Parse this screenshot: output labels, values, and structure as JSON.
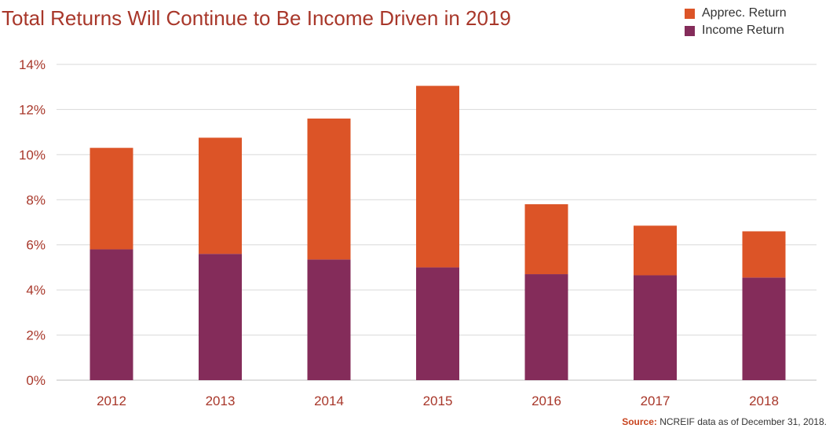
{
  "chart_data": {
    "type": "bar",
    "stacked": true,
    "title": "Total Returns Will Continue to Be Income Driven in 2019",
    "categories": [
      "2012",
      "2013",
      "2014",
      "2015",
      "2016",
      "2017",
      "2018"
    ],
    "series": [
      {
        "name": "Income Return",
        "color": "#842c5a",
        "values": [
          5.8,
          5.6,
          5.35,
          5.0,
          4.7,
          4.65,
          4.55
        ]
      },
      {
        "name": "Apprec. Return",
        "color": "#dc5427",
        "values": [
          4.5,
          5.15,
          6.25,
          8.05,
          3.1,
          2.2,
          2.05
        ]
      }
    ],
    "ylim": [
      0,
      14
    ],
    "yticks": [
      0,
      2,
      4,
      6,
      8,
      10,
      12,
      14
    ],
    "ytick_labels": [
      "0%",
      "2%",
      "4%",
      "6%",
      "8%",
      "10%",
      "12%",
      "14%"
    ],
    "grid": true,
    "legend": {
      "position": "top-right",
      "entries": [
        {
          "label": "Apprec. Return",
          "color": "#dc5427"
        },
        {
          "label": "Income Return",
          "color": "#842c5a"
        }
      ]
    },
    "source": {
      "label": "Source:",
      "text": "NCREIF data as of December 31, 2018."
    }
  }
}
